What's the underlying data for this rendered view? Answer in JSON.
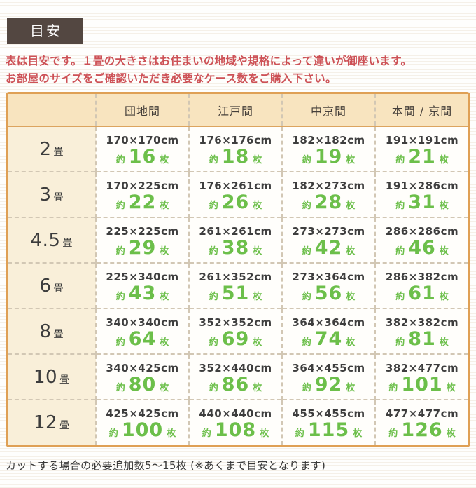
{
  "page": {
    "badge_label": "目安",
    "notice": {
      "line1": "表は目安です。１畳の大きさはお住まいの地域や規格によって違いが御座います。",
      "line2": "お部屋のサイズをご確認いただき必要なケース数をご購入下さい。"
    },
    "footer_note": "カットする場合の必要追加数5〜15枚 (※あくまで目安となります)"
  },
  "colors": {
    "badge_bg": "#534741",
    "notice_red": "#cd5156",
    "table_border": "#dfa055",
    "header_row_bg": "#f8e4bf",
    "row_header_bg": "#f9efd9",
    "cell_bg": "#fffefb",
    "count_green": "#6cbf4a",
    "text_dark": "#3e3e3e",
    "dashed_line": "#d2c7b4"
  },
  "chart_data": {
    "type": "table",
    "title": "目安",
    "columns": [
      "団地間",
      "江戸間",
      "中京間",
      "本間 / 京間"
    ],
    "row_unit": "畳",
    "approx_prefix": "約",
    "count_suffix": "枚",
    "rows": [
      {
        "label": "2",
        "cells": [
          {
            "size": "170×170cm",
            "count": "16"
          },
          {
            "size": "176×176cm",
            "count": "18"
          },
          {
            "size": "182×182cm",
            "count": "19"
          },
          {
            "size": "191×191cm",
            "count": "21"
          }
        ]
      },
      {
        "label": "3",
        "cells": [
          {
            "size": "170×225cm",
            "count": "22"
          },
          {
            "size": "176×261cm",
            "count": "26"
          },
          {
            "size": "182×273cm",
            "count": "28"
          },
          {
            "size": "191×286cm",
            "count": "31"
          }
        ]
      },
      {
        "label": "4.5",
        "cells": [
          {
            "size": "225×225cm",
            "count": "29"
          },
          {
            "size": "261×261cm",
            "count": "38"
          },
          {
            "size": "273×273cm",
            "count": "42"
          },
          {
            "size": "286×286cm",
            "count": "46"
          }
        ]
      },
      {
        "label": "6",
        "cells": [
          {
            "size": "225×340cm",
            "count": "43"
          },
          {
            "size": "261×352cm",
            "count": "51"
          },
          {
            "size": "273×364cm",
            "count": "56"
          },
          {
            "size": "286×382cm",
            "count": "61"
          }
        ]
      },
      {
        "label": "8",
        "cells": [
          {
            "size": "340×340cm",
            "count": "64"
          },
          {
            "size": "352×352cm",
            "count": "69"
          },
          {
            "size": "364×364cm",
            "count": "74"
          },
          {
            "size": "382×382cm",
            "count": "81"
          }
        ]
      },
      {
        "label": "10",
        "cells": [
          {
            "size": "340×425cm",
            "count": "80"
          },
          {
            "size": "352×440cm",
            "count": "86"
          },
          {
            "size": "364×455cm",
            "count": "92"
          },
          {
            "size": "382×477cm",
            "count": "101"
          }
        ]
      },
      {
        "label": "12",
        "cells": [
          {
            "size": "425×425cm",
            "count": "100"
          },
          {
            "size": "440×440cm",
            "count": "108"
          },
          {
            "size": "455×455cm",
            "count": "115"
          },
          {
            "size": "477×477cm",
            "count": "126"
          }
        ]
      }
    ]
  }
}
